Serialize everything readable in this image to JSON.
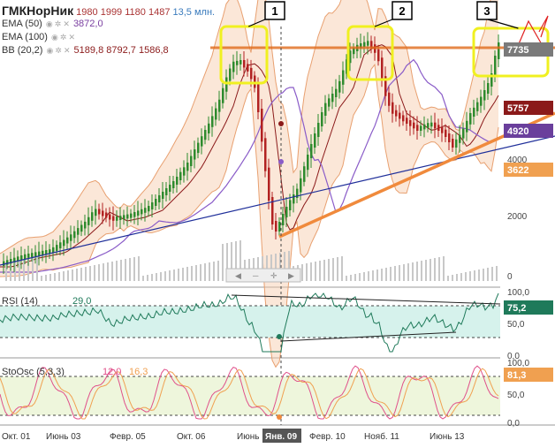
{
  "header": {
    "ticker": "ГМКНорНик",
    "open": "1980",
    "high": "1999",
    "low": "1180",
    "close": "1487",
    "volume": "13,5 млн.",
    "ema50_label": "EMA (50)",
    "ema50_value": "3872,0",
    "ema100_label": "EMA (100)",
    "bb_label": "BB (20,2)",
    "bb_v1": "5189,8",
    "bb_v2": "8792,7",
    "bb_v3": "1586,8"
  },
  "annotations": {
    "box1": "1",
    "box2": "2",
    "box3": "3"
  },
  "price_tags": [
    {
      "value": "7735",
      "color": "#7a7a7a"
    },
    {
      "value": "5757",
      "color": "#8b1a1a"
    },
    {
      "value": "4920",
      "color": "#6a3f9c"
    },
    {
      "value": "3622",
      "color": "#f0a050"
    }
  ],
  "price_axis": {
    "ticks": [
      "2000",
      "4000",
      "0"
    ]
  },
  "rsi": {
    "label": "RSI (14)",
    "value": "29,0",
    "current": "75,2",
    "ticks": [
      "100,0",
      "50,0",
      "0,0"
    ]
  },
  "stoch": {
    "label": "StoOsc (5,3,3)",
    "k": "12,0",
    "d": "16,3",
    "current": "81,3",
    "ticks": [
      "100,0",
      "50,0",
      "0,0"
    ]
  },
  "x_axis": {
    "labels": [
      "Окт. 01",
      "Июнь 03",
      "Февр. 05",
      "Окт. 06",
      "Июнь",
      "Янв. 09",
      "Февр. 10",
      "Нояб. 11",
      "Июнь 13"
    ],
    "highlight": "Янв. 09"
  },
  "colors": {
    "up": "#2e8b2e",
    "down": "#b22222",
    "ema50": "#8a5cc8",
    "bb_mid": "#8b1a1a",
    "band_fill": "#f7c9a8",
    "trend_orange": "#f08a3c",
    "trend_blue": "#1f2f9a",
    "box": "#f0f020"
  }
}
